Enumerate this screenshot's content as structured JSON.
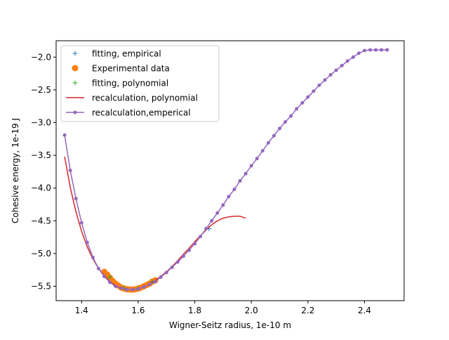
{
  "chart_data": {
    "type": "line",
    "title": "",
    "xlabel": "Wigner-Seitz radius, 1e-10 m",
    "ylabel": "Cohesive energy, 1e-19 J",
    "xlim": [
      1.31,
      2.54
    ],
    "ylim": [
      -5.72,
      -1.75
    ],
    "xticks": [
      1.4,
      1.6,
      1.8,
      2.0,
      2.2,
      2.4
    ],
    "xtick_labels": [
      "1.4",
      "1.6",
      "1.8",
      "2.0",
      "2.2",
      "2.4"
    ],
    "yticks": [
      -5.5,
      -5.0,
      -4.5,
      -4.0,
      -3.5,
      -3.0,
      -2.5,
      -2.0
    ],
    "ytick_labels": [
      "−5.5",
      "−5.0",
      "−4.5",
      "−4.0",
      "−3.5",
      "−3.0",
      "−2.5",
      "−2.0"
    ],
    "grid": false,
    "legend_position": "top-left",
    "colors": {
      "fitting_empirical": "#1f77b4",
      "experimental": "#ff7f0e",
      "fitting_polynomial": "#2ca02c",
      "recalc_polynomial": "#d62728",
      "recalc_empirical": "#9467bd"
    },
    "series": [
      {
        "name": "fitting, empirical",
        "style": "plus",
        "color": "#1f77b4",
        "x": [
          1.48,
          1.49,
          1.5,
          1.51,
          1.52,
          1.53,
          1.54,
          1.55,
          1.56,
          1.57,
          1.58,
          1.59,
          1.6,
          1.61,
          1.62,
          1.63,
          1.64,
          1.65,
          1.66,
          1.85
        ],
        "y": [
          -5.27,
          -5.31,
          -5.36,
          -5.41,
          -5.45,
          -5.48,
          -5.51,
          -5.53,
          -5.54,
          -5.545,
          -5.545,
          -5.54,
          -5.53,
          -5.52,
          -5.5,
          -5.48,
          -5.46,
          -5.43,
          -5.41,
          -4.62
        ]
      },
      {
        "name": "Experimental data",
        "style": "circle",
        "color": "#ff7f0e",
        "x": [
          1.48,
          1.49,
          1.5,
          1.51,
          1.52,
          1.53,
          1.54,
          1.55,
          1.56,
          1.57,
          1.58,
          1.59,
          1.6,
          1.61,
          1.62,
          1.63,
          1.64,
          1.65,
          1.66
        ],
        "y": [
          -5.28,
          -5.32,
          -5.37,
          -5.42,
          -5.46,
          -5.49,
          -5.52,
          -5.535,
          -5.545,
          -5.55,
          -5.55,
          -5.545,
          -5.535,
          -5.52,
          -5.5,
          -5.48,
          -5.46,
          -5.43,
          -5.41
        ]
      },
      {
        "name": "fitting, polynomial",
        "style": "plus",
        "color": "#2ca02c",
        "x": [
          1.5,
          1.55,
          1.6,
          1.65
        ],
        "y": [
          -5.36,
          -5.53,
          -5.53,
          -5.43
        ]
      },
      {
        "name": "recalculation, polynomial",
        "style": "line",
        "color": "#d62728",
        "x": [
          1.34,
          1.36,
          1.38,
          1.4,
          1.42,
          1.44,
          1.46,
          1.48,
          1.5,
          1.52,
          1.54,
          1.56,
          1.58,
          1.6,
          1.62,
          1.64,
          1.66,
          1.68,
          1.7,
          1.72,
          1.74,
          1.76,
          1.78,
          1.8,
          1.82,
          1.84,
          1.86,
          1.88,
          1.9,
          1.92,
          1.94,
          1.96,
          1.98
        ],
        "y": [
          -3.52,
          -3.99,
          -4.36,
          -4.66,
          -4.9,
          -5.08,
          -5.23,
          -5.34,
          -5.43,
          -5.49,
          -5.53,
          -5.55,
          -5.55,
          -5.54,
          -5.51,
          -5.47,
          -5.41,
          -5.35,
          -5.28,
          -5.2,
          -5.11,
          -5.01,
          -4.92,
          -4.82,
          -4.73,
          -4.64,
          -4.56,
          -4.5,
          -4.46,
          -4.44,
          -4.43,
          -4.43,
          -4.46
        ]
      },
      {
        "name": "recalculation,emperical",
        "style": "line-dot",
        "color": "#9467bd",
        "x": [
          1.34,
          1.36,
          1.38,
          1.4,
          1.42,
          1.44,
          1.46,
          1.48,
          1.5,
          1.52,
          1.54,
          1.56,
          1.58,
          1.6,
          1.62,
          1.64,
          1.66,
          1.68,
          1.7,
          1.72,
          1.74,
          1.76,
          1.78,
          1.8,
          1.82,
          1.84,
          1.86,
          1.88,
          1.9,
          1.92,
          1.94,
          1.96,
          1.98,
          2.0,
          2.02,
          2.04,
          2.06,
          2.08,
          2.1,
          2.12,
          2.14,
          2.16,
          2.18,
          2.2,
          2.22,
          2.24,
          2.26,
          2.28,
          2.3,
          2.32,
          2.34,
          2.36,
          2.38,
          2.4,
          2.42,
          2.44,
          2.46,
          2.48
        ],
        "y": [
          -3.19,
          -3.73,
          -4.16,
          -4.53,
          -4.83,
          -5.06,
          -5.23,
          -5.35,
          -5.44,
          -5.5,
          -5.53,
          -5.55,
          -5.55,
          -5.54,
          -5.51,
          -5.47,
          -5.43,
          -5.36,
          -5.29,
          -5.21,
          -5.13,
          -5.04,
          -4.95,
          -4.85,
          -4.74,
          -4.62,
          -4.5,
          -4.38,
          -4.26,
          -4.13,
          -4.02,
          -3.89,
          -3.78,
          -3.66,
          -3.55,
          -3.43,
          -3.31,
          -3.2,
          -3.09,
          -2.99,
          -2.9,
          -2.79,
          -2.7,
          -2.61,
          -2.52,
          -2.43,
          -2.35,
          -2.27,
          -2.2,
          -2.13,
          -2.06,
          -2.0,
          -1.94,
          -1.9,
          -1.89,
          -1.89,
          -1.89,
          -1.89
        ]
      }
    ]
  }
}
